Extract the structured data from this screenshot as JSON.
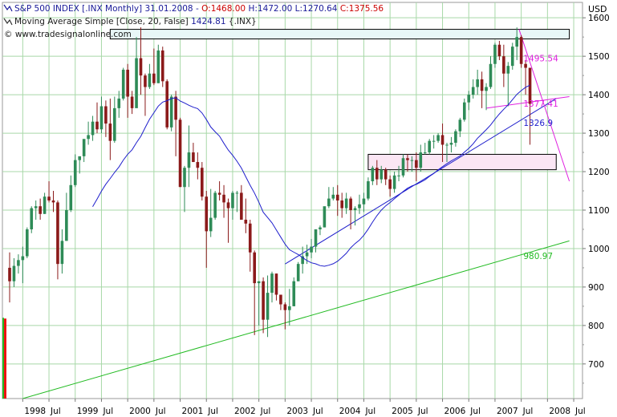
{
  "header": {
    "line1": {
      "symbol": "S&P 500 INDEX [.INX Monthly] 31.01.2008 - ",
      "open": "O:1468.00",
      "high": " H:1472.00",
      "low": " L:1270.64",
      "close": " C:1375.56"
    },
    "line2": {
      "label": "Moving Average Simple [Close, 20, False] ",
      "value": "1424.81",
      "suffix": " {.INX}"
    },
    "line3": "© www.tradesignalonline.com"
  },
  "colors": {
    "up": "#2e8b57",
    "down": "#8b1a1a",
    "ma": "#1e1ecc",
    "trend_blue": "#1e1ecc",
    "trend_green": "#22bb22",
    "trend_magenta": "#e020e0",
    "zone_top": "#e8f7f7",
    "zone_pink": "#fbe6f4",
    "grid": "#a8d8a8",
    "header_up": "#1a1a99",
    "header_down": "#cc0000"
  },
  "chart_data": {
    "type": "candlestick",
    "title": "S&P 500 INDEX [.INX Monthly]",
    "ylabel": "USD",
    "ylim": [
      610,
      1640
    ],
    "y_ticks": [
      700,
      800,
      900,
      1000,
      1100,
      1200,
      1300,
      1400,
      1500,
      1600
    ],
    "y_tick_labels": [
      "700",
      "800",
      "900",
      "1000",
      "1100",
      "1200",
      "1300",
      "1400",
      "1500",
      "1600"
    ],
    "x_tick_labels": [
      "1998",
      "Jul",
      "1999",
      "Jul",
      "2000",
      "Jul",
      "2001",
      "Jul",
      "2002",
      "Jul",
      "2003",
      "Jul",
      "2004",
      "Jul",
      "2005",
      "Jul",
      "2006",
      "Jul",
      "2007",
      "Jul",
      "2008",
      "Jul"
    ],
    "start_month": "1997-10",
    "series_ohlc": [
      [
        950,
        990,
        860,
        915
      ],
      [
        915,
        975,
        900,
        955
      ],
      [
        955,
        985,
        935,
        970
      ],
      [
        970,
        1005,
        910,
        980
      ],
      [
        980,
        1055,
        975,
        1050
      ],
      [
        1050,
        1110,
        1040,
        1105
      ],
      [
        1105,
        1125,
        1075,
        1110
      ],
      [
        1110,
        1130,
        1075,
        1090
      ],
      [
        1090,
        1145,
        1090,
        1135
      ],
      [
        1135,
        1175,
        1120,
        1125
      ],
      [
        1125,
        1150,
        1095,
        1120
      ],
      [
        1120,
        1125,
        920,
        960
      ],
      [
        960,
        1050,
        935,
        1020
      ],
      [
        1020,
        1145,
        1020,
        1100
      ],
      [
        1100,
        1190,
        1095,
        1165
      ],
      [
        1165,
        1245,
        1160,
        1230
      ],
      [
        1230,
        1235,
        1195,
        1240
      ],
      [
        1240,
        1250,
        1225,
        1285
      ],
      [
        1285,
        1330,
        1270,
        1295
      ],
      [
        1295,
        1345,
        1280,
        1330
      ],
      [
        1330,
        1380,
        1300,
        1310
      ],
      [
        1310,
        1395,
        1300,
        1370
      ],
      [
        1370,
        1385,
        1290,
        1325
      ],
      [
        1325,
        1390,
        1230,
        1280
      ],
      [
        1280,
        1395,
        1275,
        1365
      ],
      [
        1365,
        1410,
        1340,
        1390
      ],
      [
        1390,
        1470,
        1385,
        1465
      ],
      [
        1465,
        1480,
        1340,
        1395
      ],
      [
        1395,
        1410,
        1350,
        1365
      ],
      [
        1365,
        1550,
        1370,
        1495
      ],
      [
        1495,
        1575,
        1400,
        1450
      ],
      [
        1450,
        1455,
        1345,
        1420
      ],
      [
        1420,
        1480,
        1415,
        1455
      ],
      [
        1455,
        1520,
        1425,
        1430
      ],
      [
        1430,
        1530,
        1430,
        1515
      ],
      [
        1515,
        1525,
        1420,
        1435
      ],
      [
        1435,
        1440,
        1310,
        1315
      ],
      [
        1315,
        1400,
        1305,
        1395
      ],
      [
        1395,
        1410,
        1240,
        1335
      ],
      [
        1335,
        1340,
        1160,
        1160
      ],
      [
        1160,
        1215,
        1095,
        1210
      ],
      [
        1210,
        1320,
        1160,
        1250
      ],
      [
        1250,
        1275,
        1225,
        1225
      ],
      [
        1225,
        1250,
        1180,
        1210
      ],
      [
        1210,
        1225,
        1125,
        1135
      ],
      [
        1135,
        1150,
        950,
        1045
      ],
      [
        1045,
        1155,
        1030,
        1080
      ],
      [
        1080,
        1150,
        1075,
        1145
      ],
      [
        1145,
        1175,
        1125,
        1140
      ],
      [
        1140,
        1165,
        1080,
        1120
      ],
      [
        1120,
        1130,
        1015,
        1105
      ],
      [
        1105,
        1150,
        1075,
        1145
      ],
      [
        1145,
        1150,
        1095,
        1145
      ],
      [
        1145,
        1165,
        1115,
        1075
      ],
      [
        1075,
        1130,
        1040,
        1065
      ],
      [
        1065,
        1075,
        940,
        990
      ],
      [
        990,
        995,
        775,
        910
      ],
      [
        910,
        915,
        800,
        915
      ],
      [
        915,
        925,
        780,
        815
      ],
      [
        815,
        930,
        770,
        885
      ],
      [
        885,
        940,
        860,
        935
      ],
      [
        935,
        935,
        865,
        880
      ],
      [
        880,
        875,
        840,
        855
      ],
      [
        855,
        860,
        790,
        840
      ],
      [
        840,
        895,
        800,
        850
      ],
      [
        850,
        925,
        850,
        915
      ],
      [
        915,
        965,
        915,
        960
      ],
      [
        960,
        1005,
        935,
        980
      ],
      [
        980,
        1010,
        960,
        990
      ],
      [
        990,
        1025,
        975,
        1005
      ],
      [
        1005,
        1040,
        990,
        1050
      ],
      [
        1050,
        1060,
        1035,
        1055
      ],
      [
        1055,
        1090,
        1055,
        1110
      ],
      [
        1110,
        1160,
        1105,
        1130
      ],
      [
        1130,
        1160,
        1125,
        1140
      ],
      [
        1140,
        1165,
        1085,
        1125
      ],
      [
        1125,
        1145,
        1080,
        1105
      ],
      [
        1105,
        1145,
        1090,
        1130
      ],
      [
        1130,
        1135,
        1050,
        1100
      ],
      [
        1100,
        1110,
        1060,
        1105
      ],
      [
        1105,
        1140,
        1090,
        1115
      ],
      [
        1115,
        1145,
        1095,
        1130
      ],
      [
        1130,
        1185,
        1125,
        1175
      ],
      [
        1175,
        1215,
        1165,
        1210
      ],
      [
        1210,
        1230,
        1165,
        1180
      ],
      [
        1180,
        1215,
        1170,
        1205
      ],
      [
        1205,
        1210,
        1165,
        1180
      ],
      [
        1180,
        1190,
        1135,
        1155
      ],
      [
        1155,
        1200,
        1145,
        1190
      ],
      [
        1190,
        1215,
        1175,
        1190
      ],
      [
        1190,
        1245,
        1185,
        1235
      ],
      [
        1235,
        1245,
        1200,
        1230
      ],
      [
        1230,
        1240,
        1200,
        1230
      ],
      [
        1230,
        1250,
        1175,
        1210
      ],
      [
        1210,
        1270,
        1200,
        1250
      ],
      [
        1250,
        1275,
        1245,
        1250
      ],
      [
        1250,
        1285,
        1245,
        1280
      ],
      [
        1280,
        1295,
        1260,
        1280
      ],
      [
        1280,
        1300,
        1275,
        1295
      ],
      [
        1295,
        1325,
        1225,
        1270
      ],
      [
        1270,
        1275,
        1225,
        1270
      ],
      [
        1270,
        1290,
        1250,
        1275
      ],
      [
        1275,
        1310,
        1265,
        1305
      ],
      [
        1305,
        1340,
        1290,
        1335
      ],
      [
        1335,
        1390,
        1330,
        1380
      ],
      [
        1380,
        1410,
        1360,
        1400
      ],
      [
        1400,
        1440,
        1390,
        1420
      ],
      [
        1420,
        1465,
        1400,
        1440
      ],
      [
        1440,
        1460,
        1365,
        1410
      ],
      [
        1410,
        1430,
        1360,
        1420
      ],
      [
        1420,
        1500,
        1415,
        1480
      ],
      [
        1480,
        1535,
        1470,
        1530
      ],
      [
        1530,
        1540,
        1490,
        1500
      ],
      [
        1500,
        1530,
        1420,
        1455
      ],
      [
        1455,
        1485,
        1370,
        1475
      ],
      [
        1475,
        1535,
        1465,
        1525
      ],
      [
        1525,
        1575,
        1490,
        1550
      ],
      [
        1550,
        1555,
        1470,
        1480
      ],
      [
        1480,
        1490,
        1400,
        1470
      ],
      [
        1470,
        1470,
        1270,
        1376
      ]
    ],
    "moving_average": {
      "name": "Moving Average Simple [Close, 20, False]",
      "period": 20,
      "last_value": 1424.81
    },
    "trendlines": [
      {
        "name": "blue-trendline",
        "color": "trend_blue",
        "from": [
          63,
          960
        ],
        "to": [
          125,
          1390
        ]
      },
      {
        "name": "green-trendline",
        "color": "trend_green",
        "from": [
          3,
          610
        ],
        "to": [
          128,
          1020
        ]
      },
      {
        "name": "magenta-descending-line",
        "color": "trend_magenta",
        "from": [
          116.5,
          1570
        ],
        "to": [
          128,
          1175
        ]
      },
      {
        "name": "magenta-flat-line",
        "color": "trend_magenta",
        "from": [
          109,
          1365
        ],
        "to": [
          128,
          1395
        ]
      }
    ],
    "zones": [
      {
        "name": "top-resistance-zone",
        "from_index": 23,
        "to_index": 128,
        "y_low": 1545,
        "y_high": 1570,
        "fill": "zone_top"
      },
      {
        "name": "support-zone",
        "from_index": 82,
        "to_index": 125,
        "y_low": 1205,
        "y_high": 1245,
        "fill": "zone_pink"
      }
    ],
    "annotations": [
      {
        "label": "1495.54",
        "y": 1495.54,
        "x_index": 117.5,
        "color": "trend_magenta"
      },
      {
        "label": "1377.41",
        "y": 1377.41,
        "x_index": 117.5,
        "color": "trend_magenta"
      },
      {
        "label": "1326.9",
        "y": 1326.9,
        "x_index": 117.5,
        "color": "ma"
      },
      {
        "label": "980.97",
        "y": 980.97,
        "x_index": 117.5,
        "color": "trend_green"
      }
    ],
    "grid": true,
    "volume_markers": true
  }
}
